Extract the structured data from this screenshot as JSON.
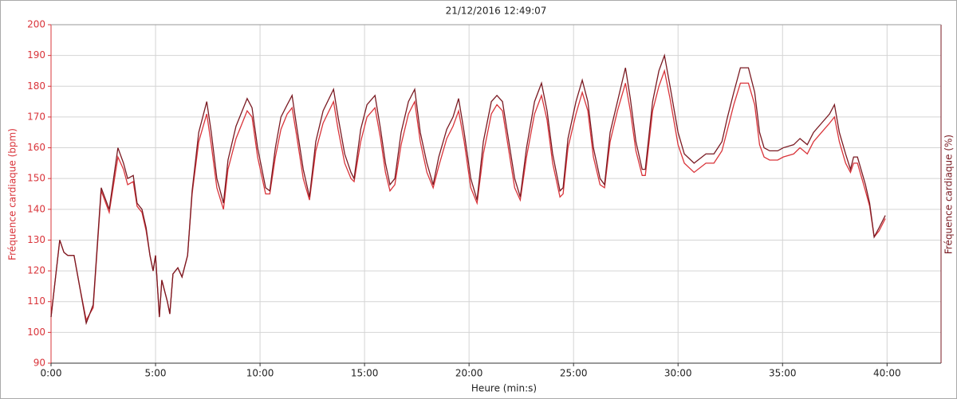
{
  "chart_data": {
    "type": "line",
    "title": "21/12/2016 12:49:07",
    "x_label": "Heure (min:s)",
    "y_label": "Fréquence cardiaque (bpm)",
    "y2_label": "Fréquence cardiaque (%)",
    "grid": true,
    "xlim": [
      0,
      2555
    ],
    "ylim": [
      90,
      200
    ],
    "xticks": [
      {
        "value": 0,
        "label": "0:00"
      },
      {
        "value": 300,
        "label": "5:00"
      },
      {
        "value": 600,
        "label": "10:00"
      },
      {
        "value": 900,
        "label": "15:00"
      },
      {
        "value": 1200,
        "label": "20:00"
      },
      {
        "value": 1500,
        "label": "25:00"
      },
      {
        "value": 1800,
        "label": "30:00"
      },
      {
        "value": 2100,
        "label": "35:00"
      },
      {
        "value": 2400,
        "label": "40:00"
      }
    ],
    "yticks": [
      90,
      100,
      110,
      120,
      130,
      140,
      150,
      160,
      170,
      180,
      190,
      200
    ],
    "x": [
      0,
      25,
      37,
      48,
      66,
      82,
      101,
      121,
      144,
      167,
      192,
      208,
      220,
      236,
      247,
      261,
      273,
      284,
      293,
      300,
      311,
      318,
      334,
      341,
      350,
      364,
      376,
      392,
      405,
      424,
      447,
      460,
      476,
      495,
      508,
      531,
      563,
      577,
      593,
      616,
      628,
      644,
      660,
      678,
      692,
      705,
      724,
      742,
      760,
      781,
      811,
      824,
      843,
      861,
      870,
      889,
      907,
      930,
      946,
      960,
      973,
      987,
      1005,
      1026,
      1044,
      1060,
      1079,
      1097,
      1113,
      1136,
      1154,
      1170,
      1186,
      1205,
      1223,
      1241,
      1264,
      1280,
      1296,
      1310,
      1331,
      1347,
      1365,
      1388,
      1408,
      1424,
      1440,
      1461,
      1470,
      1484,
      1507,
      1525,
      1541,
      1557,
      1576,
      1589,
      1605,
      1626,
      1649,
      1663,
      1679,
      1697,
      1706,
      1727,
      1745,
      1761,
      1777,
      1800,
      1818,
      1846,
      1880,
      1903,
      1926,
      1942,
      1960,
      1979,
      2002,
      2020,
      2034,
      2047,
      2063,
      2086,
      2102,
      2132,
      2150,
      2171,
      2189,
      2212,
      2235,
      2249,
      2263,
      2281,
      2295,
      2304,
      2315,
      2338,
      2350,
      2363,
      2377,
      2395
    ],
    "series": [
      {
        "color": "#d9343a",
        "values": [
          105,
          130,
          126,
          125,
          125,
          115,
          104,
          108,
          146,
          139,
          157,
          153,
          148,
          149,
          141,
          139,
          133,
          125,
          120,
          125,
          105,
          117,
          110,
          106,
          119,
          121,
          118,
          125,
          145,
          162,
          171,
          161,
          147,
          140,
          153,
          163,
          172,
          170,
          157,
          145,
          145,
          157,
          166,
          171,
          173,
          164,
          150,
          143,
          159,
          168,
          175,
          166,
          155,
          150,
          149,
          162,
          170,
          173,
          163,
          152,
          146,
          148,
          161,
          171,
          175,
          162,
          152,
          147,
          154,
          163,
          167,
          172,
          162,
          147,
          142,
          158,
          171,
          174,
          172,
          162,
          147,
          143,
          157,
          171,
          177,
          169,
          155,
          144,
          145,
          160,
          171,
          178,
          172,
          157,
          148,
          147,
          162,
          172,
          181,
          172,
          159,
          151,
          151,
          172,
          180,
          185,
          176,
          161,
          155,
          152,
          155,
          155,
          159,
          166,
          174,
          181,
          181,
          174,
          161,
          157,
          156,
          156,
          157,
          158,
          160,
          158,
          162,
          165,
          168,
          170,
          162,
          155,
          152,
          155,
          155,
          146,
          141,
          131,
          133,
          137
        ]
      },
      {
        "color": "#7a1a22",
        "values": [
          105,
          130,
          126,
          125,
          125,
          115,
          103,
          109,
          147,
          140,
          160,
          155,
          150,
          151,
          142,
          140,
          134,
          125,
          120,
          125,
          105,
          117,
          110,
          106,
          119,
          121,
          118,
          125,
          146,
          165,
          175,
          165,
          150,
          142,
          156,
          167,
          176,
          173,
          160,
          147,
          146,
          160,
          170,
          174,
          177,
          167,
          153,
          144,
          162,
          172,
          179,
          170,
          158,
          152,
          150,
          166,
          174,
          177,
          166,
          155,
          148,
          150,
          165,
          175,
          179,
          165,
          155,
          148,
          157,
          166,
          170,
          176,
          165,
          150,
          143,
          162,
          175,
          177,
          175,
          165,
          150,
          144,
          160,
          175,
          181,
          172,
          158,
          146,
          147,
          163,
          175,
          182,
          175,
          160,
          150,
          148,
          165,
          175,
          186,
          176,
          162,
          153,
          153,
          175,
          185,
          190,
          180,
          165,
          158,
          155,
          158,
          158,
          162,
          170,
          178,
          186,
          186,
          178,
          165,
          160,
          159,
          159,
          160,
          161,
          163,
          161,
          165,
          168,
          171,
          174,
          165,
          158,
          153,
          157,
          157,
          148,
          142,
          131,
          134,
          138
        ]
      }
    ]
  }
}
